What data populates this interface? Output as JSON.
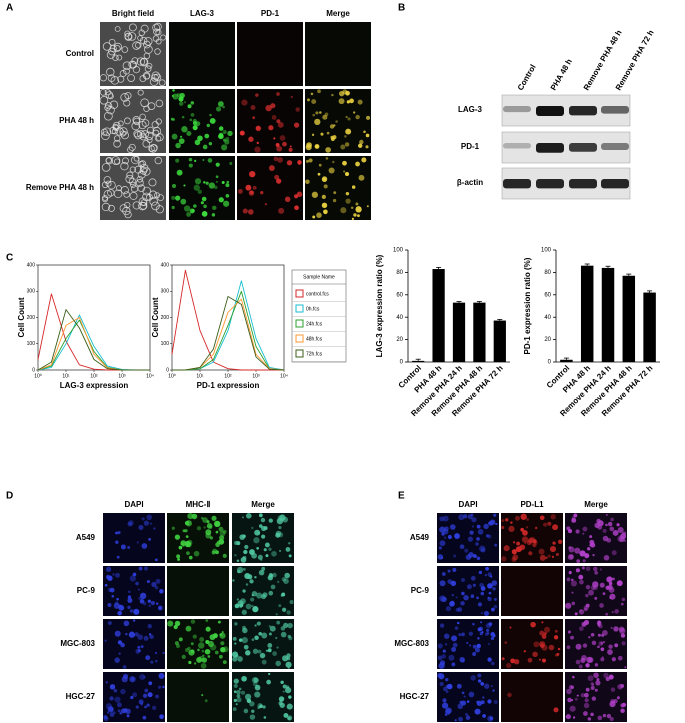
{
  "figure": {
    "panel_labels": [
      "A",
      "B",
      "C",
      "D",
      "E"
    ],
    "panel_a": {
      "columns": [
        "Bright field",
        "LAG-3",
        "PD-1",
        "Merge"
      ],
      "rows": [
        "Control",
        "PHA 48 h",
        "Remove PHA 48 h"
      ]
    },
    "panel_b": {
      "lanes": [
        "Control",
        "PHA 48 h",
        "Remove PHA 48 h",
        "Remove PHA 72 h"
      ],
      "rows": [
        "LAG-3",
        "PD-1",
        "β-actin"
      ]
    },
    "panel_d": {
      "columns": [
        "DAPI",
        "MHC-Ⅱ",
        "Merge"
      ],
      "rows": [
        "A549",
        "PC-9",
        "MGC-803",
        "HGC-27"
      ]
    },
    "panel_e": {
      "columns": [
        "DAPI",
        "PD-L1",
        "Merge"
      ],
      "rows": [
        "A549",
        "PC-9",
        "MGC-803",
        "HGC-27"
      ]
    }
  },
  "chart_data": [
    {
      "type": "line",
      "x_label": "LAG-3 expression",
      "y_label": "Cell Count",
      "log_x": true,
      "xlim": [
        1,
        10000
      ],
      "xticks": [
        {
          "value": 1,
          "label": "10⁰"
        },
        {
          "value": 10,
          "label": "10¹"
        },
        {
          "value": 100,
          "label": "10²"
        },
        {
          "value": 1000,
          "label": "10³"
        },
        {
          "value": 10000,
          "label": "10⁴"
        }
      ],
      "ylim": [
        0,
        400
      ],
      "yticks": [
        0,
        100,
        200,
        300,
        400
      ],
      "legend_title": "Sample Name",
      "x": [
        1,
        3,
        10,
        30,
        100,
        300,
        1000,
        3000,
        10000
      ],
      "series": [
        {
          "name": "control.fcs",
          "color": "#d62728",
          "values": [
            40,
            290,
            110,
            20,
            3,
            0,
            0,
            0,
            0
          ]
        },
        {
          "name": "0h.fcs",
          "color": "#17becf",
          "values": [
            0,
            10,
            100,
            210,
            90,
            15,
            2,
            0,
            0
          ]
        },
        {
          "name": "24h.fcs",
          "color": "#2ca02c",
          "values": [
            0,
            15,
            120,
            190,
            70,
            10,
            0,
            0,
            0
          ]
        },
        {
          "name": "48h.fcs",
          "color": "#ff9933",
          "values": [
            0,
            20,
            170,
            200,
            60,
            8,
            0,
            0,
            0
          ]
        },
        {
          "name": "72h.fcs",
          "color": "#3b5e1a",
          "values": [
            0,
            30,
            230,
            160,
            40,
            5,
            0,
            0,
            0
          ]
        }
      ]
    },
    {
      "type": "line",
      "x_label": "PD-1 expression",
      "y_label": "Cell Count",
      "log_x": true,
      "xlim": [
        1,
        10000
      ],
      "xticks": [
        {
          "value": 1,
          "label": "10⁰"
        },
        {
          "value": 10,
          "label": "10¹"
        },
        {
          "value": 100,
          "label": "10²"
        },
        {
          "value": 1000,
          "label": "10³"
        },
        {
          "value": 10000,
          "label": "10⁴"
        }
      ],
      "ylim": [
        0,
        400
      ],
      "yticks": [
        0,
        100,
        200,
        300,
        400
      ],
      "x": [
        1,
        3,
        10,
        30,
        100,
        300,
        1000,
        3000,
        10000
      ],
      "series": [
        {
          "color": "#d62728",
          "values": [
            60,
            380,
            150,
            30,
            5,
            0,
            0,
            0,
            0
          ]
        },
        {
          "color": "#17becf",
          "values": [
            0,
            0,
            5,
            30,
            150,
            340,
            120,
            10,
            0
          ]
        },
        {
          "color": "#2ca02c",
          "values": [
            0,
            0,
            5,
            40,
            170,
            300,
            90,
            5,
            0
          ]
        },
        {
          "color": "#ff9933",
          "values": [
            0,
            0,
            10,
            60,
            220,
            270,
            60,
            5,
            0
          ]
        },
        {
          "color": "#3b5e1a",
          "values": [
            0,
            0,
            10,
            80,
            280,
            250,
            50,
            3,
            0
          ]
        }
      ]
    },
    {
      "type": "bar",
      "y_label": "LAG-3 expression ratio (%)",
      "categories": [
        "Control",
        "PHA 48 h",
        "Remove PHA 24 h",
        "Remove PHA 48 h",
        "Remove PHA 72 h"
      ],
      "values": [
        1,
        83,
        53,
        53,
        37
      ],
      "errors": [
        1.5,
        1.5,
        1,
        1,
        1
      ],
      "color": "#000000",
      "ylim": [
        0,
        100
      ],
      "yticks": [
        0,
        20,
        40,
        60,
        80,
        100
      ]
    },
    {
      "type": "bar",
      "y_label": "PD-1 expression ratio (%)",
      "categories": [
        "Control",
        "PHA 48 h",
        "Remove PHA 24 h",
        "Remove PHA 48 h",
        "Remove PHA 72 h"
      ],
      "values": [
        2,
        86,
        84,
        77,
        62
      ],
      "errors": [
        1.5,
        1.5,
        1.5,
        1.5,
        1.5
      ],
      "color": "#000000",
      "ylim": [
        0,
        100
      ],
      "yticks": [
        0,
        20,
        40,
        60,
        80,
        100
      ]
    }
  ]
}
